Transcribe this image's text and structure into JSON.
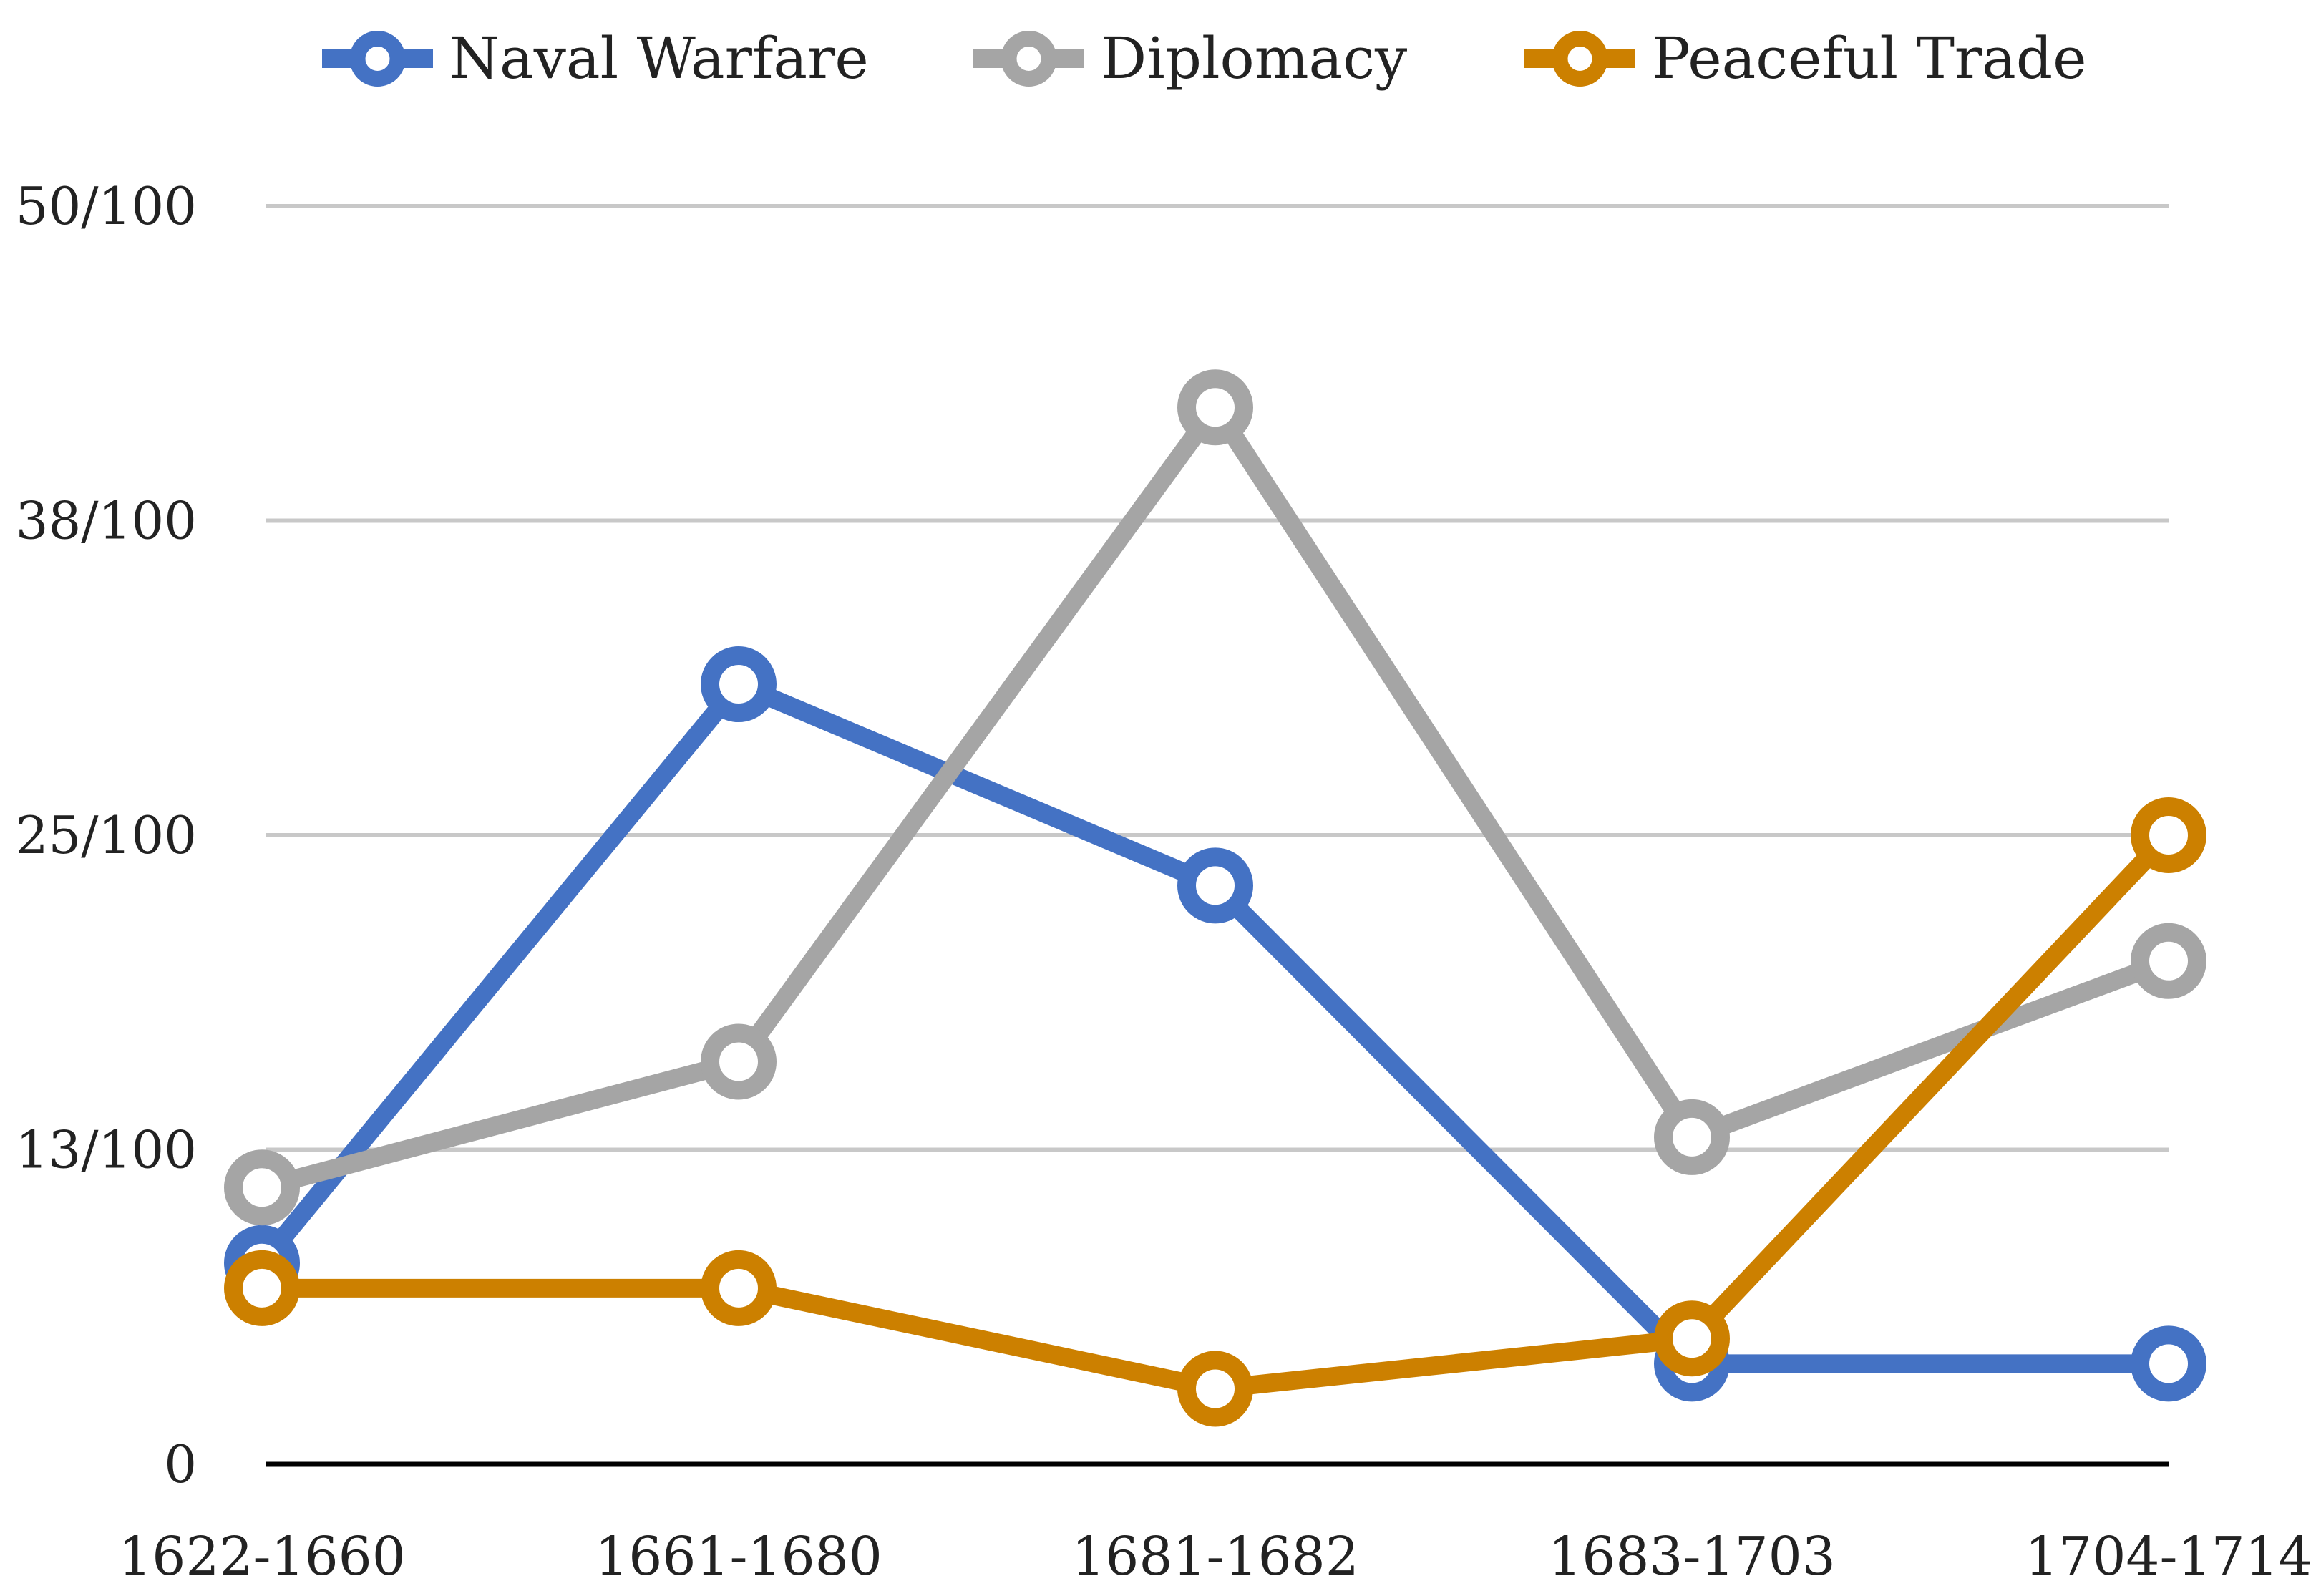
{
  "chart_data": {
    "type": "line",
    "title": "",
    "xlabel": "",
    "ylabel": "",
    "categories": [
      "1622-1660",
      "1661-1680",
      "1681-1682",
      "1683-1703",
      "1704-1714"
    ],
    "y_ticks": [
      {
        "value": 0,
        "label": "0"
      },
      {
        "value": 12.5,
        "label": "13/100"
      },
      {
        "value": 25,
        "label": "25/100"
      },
      {
        "value": 37.5,
        "label": "38/100"
      },
      {
        "value": 50,
        "label": "50/100"
      }
    ],
    "ylim": [
      0,
      50
    ],
    "grid": true,
    "legend_position": "top",
    "series": [
      {
        "name": "Naval Warfare",
        "color": "#4472C4",
        "values": [
          8,
          31,
          23,
          4,
          4
        ]
      },
      {
        "name": "Diplomacy",
        "color": "#A5A5A5",
        "values": [
          11,
          16,
          42,
          13,
          20
        ]
      },
      {
        "name": "Peaceful Trade",
        "color": "#CC8000",
        "values": [
          7,
          7,
          3,
          5,
          25
        ]
      }
    ]
  }
}
